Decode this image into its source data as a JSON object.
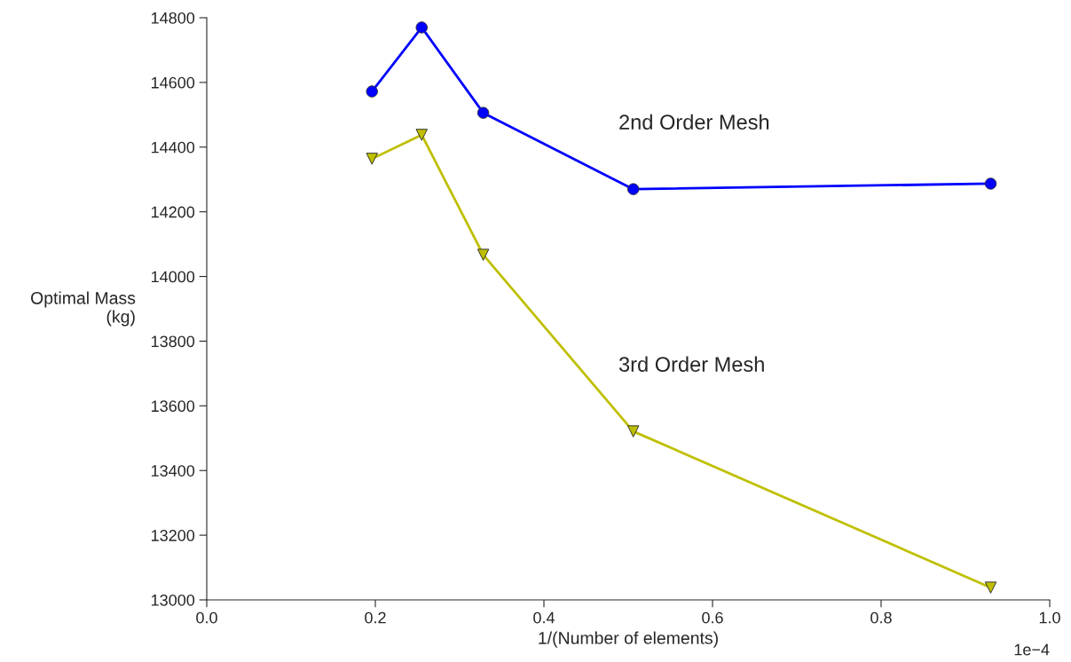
{
  "chart_data": {
    "type": "line",
    "xlabel": "1/(Number of elements)",
    "ylabel": "Optimal Mass\n(kg)",
    "x": [
      0.196,
      0.255,
      0.328,
      0.506,
      0.93
    ],
    "series": [
      {
        "name": "2nd Order Mesh",
        "color": "#0000ff",
        "marker": "circle",
        "values": [
          14572,
          14770,
          14506,
          14270,
          14287
        ]
      },
      {
        "name": "3rd Order Mesh",
        "color": "#bfbf00",
        "marker": "triangle",
        "values": [
          14364,
          14438,
          14067,
          13521,
          13038
        ]
      }
    ],
    "xlim": [
      0.0,
      1.0
    ],
    "xticks": [
      {
        "value": 0.0,
        "label": "0.0"
      },
      0.2,
      0.4,
      0.6,
      0.8,
      {
        "value": 1.0,
        "label": "1.0"
      }
    ],
    "ylim": [
      13000,
      14800
    ],
    "yticks": [
      13000,
      13200,
      13400,
      13600,
      13800,
      14000,
      14200,
      14400,
      14600,
      14800
    ],
    "annotations": [
      "1e−4"
    ],
    "grid": false,
    "legend": false,
    "line_style": "solid"
  }
}
